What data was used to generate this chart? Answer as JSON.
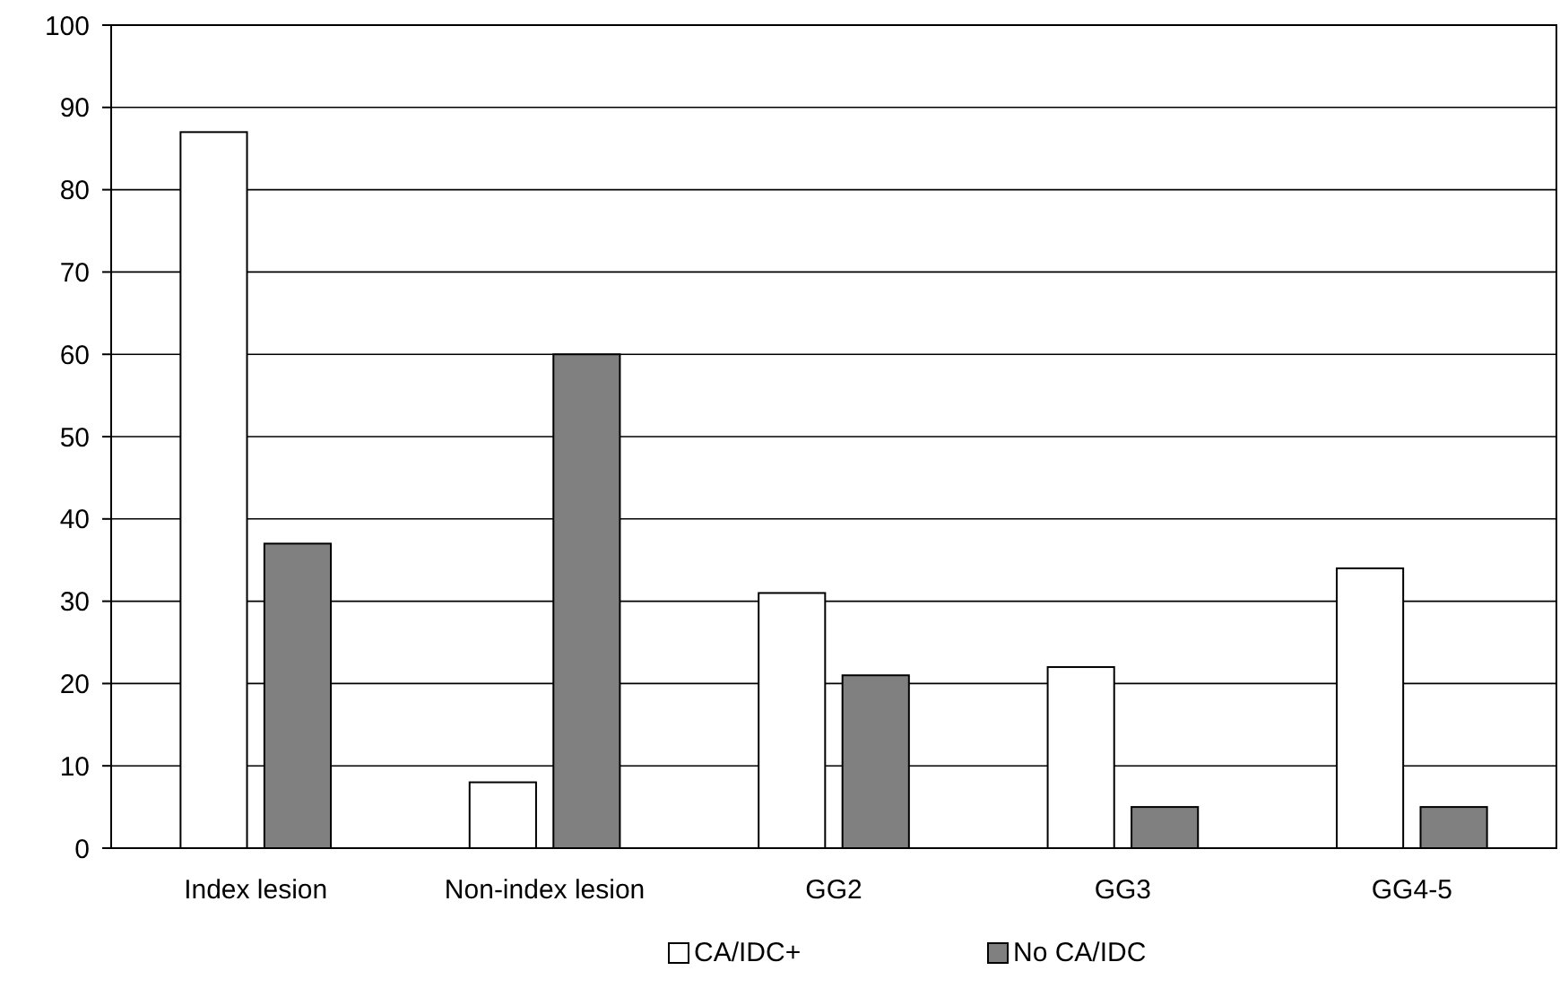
{
  "chart_data": {
    "type": "bar",
    "categories": [
      "Index lesion",
      "Non-index lesion",
      "GG2",
      "GG3",
      "GG4-5"
    ],
    "series": [
      {
        "name": "CA/IDC+",
        "color": "#ffffff",
        "values": [
          87,
          8,
          31,
          22,
          34
        ]
      },
      {
        "name": "No CA/IDC",
        "color": "#808080",
        "values": [
          37,
          60,
          21,
          5,
          5
        ]
      }
    ],
    "ylim": [
      0,
      100
    ],
    "yticks": [
      0,
      10,
      20,
      30,
      40,
      50,
      60,
      70,
      80,
      90,
      100
    ],
    "grid": "y",
    "legend": "bottom"
  }
}
